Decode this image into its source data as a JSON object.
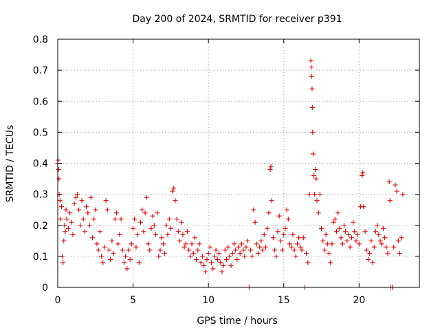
{
  "chart_data": {
    "type": "scatter",
    "title": "Day 200 of 2024, SRMTID for receiver p391",
    "xlabel": "GPS time / hours",
    "ylabel": "SRMTID / TECUs",
    "xlim": [
      0,
      24
    ],
    "ylim": [
      0,
      0.8
    ],
    "xticks": [
      0,
      5,
      10,
      15,
      20
    ],
    "xtick_labels": [
      "0",
      "5",
      "10",
      "15",
      "20"
    ],
    "yticks": [
      0,
      0.1,
      0.2,
      0.3,
      0.4,
      0.5,
      0.6,
      0.7,
      0.8
    ],
    "ytick_labels": [
      "0",
      "0.1",
      "0.2",
      "0.3",
      "0.4",
      "0.5",
      "0.6",
      "0.7",
      "0.8"
    ],
    "grid": true,
    "marker": "+",
    "marker_color": "#e00000",
    "series": [
      {
        "name": "SRMTID",
        "points": [
          [
            0.0,
            0.4
          ],
          [
            0.02,
            0.41
          ],
          [
            0.05,
            0.38
          ],
          [
            0.08,
            0.35
          ],
          [
            0.1,
            0.3
          ],
          [
            0.15,
            0.28
          ],
          [
            0.2,
            0.22
          ],
          [
            0.25,
            0.26
          ],
          [
            0.3,
            0.1
          ],
          [
            0.35,
            0.08
          ],
          [
            0.4,
            0.15
          ],
          [
            0.45,
            0.2
          ],
          [
            0.5,
            0.18
          ],
          [
            0.55,
            0.25
          ],
          [
            0.6,
            0.22
          ],
          [
            0.7,
            0.19
          ],
          [
            0.8,
            0.24
          ],
          [
            0.9,
            0.21
          ],
          [
            1.0,
            0.17
          ],
          [
            1.1,
            0.27
          ],
          [
            1.2,
            0.29
          ],
          [
            1.3,
            0.3
          ],
          [
            1.4,
            0.25
          ],
          [
            1.5,
            0.2
          ],
          [
            1.6,
            0.28
          ],
          [
            1.7,
            0.22
          ],
          [
            1.8,
            0.18
          ],
          [
            1.9,
            0.26
          ],
          [
            2.0,
            0.24
          ],
          [
            2.1,
            0.2
          ],
          [
            2.2,
            0.29
          ],
          [
            2.3,
            0.16
          ],
          [
            2.4,
            0.22
          ],
          [
            2.5,
            0.25
          ],
          [
            2.6,
            0.14
          ],
          [
            2.7,
            0.12
          ],
          [
            2.8,
            0.18
          ],
          [
            2.9,
            0.1
          ],
          [
            3.0,
            0.08
          ],
          [
            3.1,
            0.13
          ],
          [
            3.2,
            0.28
          ],
          [
            3.3,
            0.25
          ],
          [
            3.4,
            0.12
          ],
          [
            3.5,
            0.09
          ],
          [
            3.6,
            0.15
          ],
          [
            3.7,
            0.11
          ],
          [
            3.8,
            0.22
          ],
          [
            3.9,
            0.24
          ],
          [
            4.0,
            0.14
          ],
          [
            4.1,
            0.17
          ],
          [
            4.2,
            0.22
          ],
          [
            4.3,
            0.12
          ],
          [
            4.4,
            0.08
          ],
          [
            4.5,
            0.1
          ],
          [
            4.6,
            0.06
          ],
          [
            4.7,
            0.12
          ],
          [
            4.8,
            0.09
          ],
          [
            4.9,
            0.14
          ],
          [
            5.0,
            0.19
          ],
          [
            5.1,
            0.22
          ],
          [
            5.2,
            0.13
          ],
          [
            5.3,
            0.17
          ],
          [
            5.4,
            0.08
          ],
          [
            5.5,
            0.21
          ],
          [
            5.6,
            0.25
          ],
          [
            5.7,
            0.18
          ],
          [
            5.8,
            0.24
          ],
          [
            5.9,
            0.29
          ],
          [
            6.0,
            0.14
          ],
          [
            6.1,
            0.12
          ],
          [
            6.2,
            0.19
          ],
          [
            6.3,
            0.23
          ],
          [
            6.4,
            0.2
          ],
          [
            6.5,
            0.17
          ],
          [
            6.6,
            0.24
          ],
          [
            6.7,
            0.1
          ],
          [
            6.8,
            0.12
          ],
          [
            6.9,
            0.16
          ],
          [
            7.0,
            0.14
          ],
          [
            7.1,
            0.11
          ],
          [
            7.2,
            0.2
          ],
          [
            7.3,
            0.17
          ],
          [
            7.4,
            0.22
          ],
          [
            7.5,
            0.19
          ],
          [
            7.6,
            0.31
          ],
          [
            7.7,
            0.32
          ],
          [
            7.8,
            0.28
          ],
          [
            7.9,
            0.22
          ],
          [
            8.0,
            0.18
          ],
          [
            8.1,
            0.15
          ],
          [
            8.2,
            0.21
          ],
          [
            8.3,
            0.17
          ],
          [
            8.4,
            0.13
          ],
          [
            8.5,
            0.14
          ],
          [
            8.6,
            0.18
          ],
          [
            8.7,
            0.12
          ],
          [
            8.8,
            0.1
          ],
          [
            8.9,
            0.14
          ],
          [
            9.0,
            0.11
          ],
          [
            9.1,
            0.16
          ],
          [
            9.2,
            0.09
          ],
          [
            9.3,
            0.12
          ],
          [
            9.4,
            0.14
          ],
          [
            9.5,
            0.08
          ],
          [
            9.6,
            0.1
          ],
          [
            9.7,
            0.07
          ],
          [
            9.8,
            0.05
          ],
          [
            9.9,
            0.09
          ],
          [
            10.0,
            0.11
          ],
          [
            10.1,
            0.13
          ],
          [
            10.2,
            0.08
          ],
          [
            10.3,
            0.06
          ],
          [
            10.4,
            0.1
          ],
          [
            10.5,
            0.12
          ],
          [
            10.6,
            0.09
          ],
          [
            10.7,
            0.11
          ],
          [
            10.8,
            0.08
          ],
          [
            10.9,
            0.05
          ],
          [
            11.0,
            0.07
          ],
          [
            11.1,
            0.12
          ],
          [
            11.2,
            0.09
          ],
          [
            11.3,
            0.13
          ],
          [
            11.4,
            0.1
          ],
          [
            11.5,
            0.07
          ],
          [
            11.6,
            0.11
          ],
          [
            11.7,
            0.14
          ],
          [
            11.8,
            0.12
          ],
          [
            11.9,
            0.09
          ],
          [
            12.0,
            0.13
          ],
          [
            12.1,
            0.11
          ],
          [
            12.2,
            0.14
          ],
          [
            12.3,
            0.12
          ],
          [
            12.4,
            0.1
          ],
          [
            12.5,
            0.13
          ],
          [
            12.6,
            0.15
          ],
          [
            12.7,
            0.0
          ],
          [
            12.8,
            0.12
          ],
          [
            12.9,
            0.1
          ],
          [
            13.0,
            0.25
          ],
          [
            13.1,
            0.21
          ],
          [
            13.2,
            0.14
          ],
          [
            13.3,
            0.11
          ],
          [
            13.4,
            0.13
          ],
          [
            13.5,
            0.15
          ],
          [
            13.6,
            0.12
          ],
          [
            13.7,
            0.17
          ],
          [
            13.8,
            0.13
          ],
          [
            13.9,
            0.19
          ],
          [
            14.0,
            0.24
          ],
          [
            14.1,
            0.38
          ],
          [
            14.15,
            0.39
          ],
          [
            14.2,
            0.28
          ],
          [
            14.3,
            0.16
          ],
          [
            14.4,
            0.12
          ],
          [
            14.5,
            0.1
          ],
          [
            14.6,
            0.18
          ],
          [
            14.7,
            0.23
          ],
          [
            14.8,
            0.15
          ],
          [
            14.9,
            0.12
          ],
          [
            15.0,
            0.17
          ],
          [
            15.1,
            0.19
          ],
          [
            15.2,
            0.25
          ],
          [
            15.3,
            0.22
          ],
          [
            15.4,
            0.14
          ],
          [
            15.5,
            0.13
          ],
          [
            15.6,
            0.17
          ],
          [
            15.7,
            0.12
          ],
          [
            15.8,
            0.1
          ],
          [
            15.9,
            0.14
          ],
          [
            16.0,
            0.16
          ],
          [
            16.1,
            0.13
          ],
          [
            16.2,
            0.12
          ],
          [
            16.3,
            0.16
          ],
          [
            16.4,
            0.0
          ],
          [
            16.5,
            0.11
          ],
          [
            16.6,
            0.08
          ],
          [
            16.7,
            0.3
          ],
          [
            16.8,
            0.73
          ],
          [
            16.82,
            0.71
          ],
          [
            16.85,
            0.68
          ],
          [
            16.88,
            0.64
          ],
          [
            16.9,
            0.58
          ],
          [
            16.92,
            0.5
          ],
          [
            16.95,
            0.43
          ],
          [
            17.0,
            0.36
          ],
          [
            17.05,
            0.3
          ],
          [
            17.1,
            0.38
          ],
          [
            17.15,
            0.35
          ],
          [
            17.2,
            0.28
          ],
          [
            17.3,
            0.24
          ],
          [
            17.4,
            0.3
          ],
          [
            17.5,
            0.19
          ],
          [
            17.6,
            0.15
          ],
          [
            17.7,
            0.12
          ],
          [
            17.8,
            0.17
          ],
          [
            17.9,
            0.14
          ],
          [
            18.0,
            0.11
          ],
          [
            18.1,
            0.08
          ],
          [
            18.2,
            0.14
          ],
          [
            18.3,
            0.21
          ],
          [
            18.4,
            0.22
          ],
          [
            18.5,
            0.18
          ],
          [
            18.6,
            0.24
          ],
          [
            18.7,
            0.19
          ],
          [
            18.8,
            0.16
          ],
          [
            18.9,
            0.14
          ],
          [
            19.0,
            0.2
          ],
          [
            19.1,
            0.18
          ],
          [
            19.2,
            0.15
          ],
          [
            19.3,
            0.17
          ],
          [
            19.4,
            0.13
          ],
          [
            19.5,
            0.16
          ],
          [
            19.6,
            0.21
          ],
          [
            19.7,
            0.18
          ],
          [
            19.8,
            0.15
          ],
          [
            19.9,
            0.17
          ],
          [
            20.0,
            0.14
          ],
          [
            20.1,
            0.26
          ],
          [
            20.2,
            0.36
          ],
          [
            20.25,
            0.37
          ],
          [
            20.3,
            0.26
          ],
          [
            20.4,
            0.18
          ],
          [
            20.5,
            0.12
          ],
          [
            20.6,
            0.09
          ],
          [
            20.7,
            0.11
          ],
          [
            20.8,
            0.15
          ],
          [
            20.9,
            0.08
          ],
          [
            21.0,
            0.13
          ],
          [
            21.1,
            0.18
          ],
          [
            21.2,
            0.2
          ],
          [
            21.3,
            0.17
          ],
          [
            21.4,
            0.15
          ],
          [
            21.5,
            0.14
          ],
          [
            21.6,
            0.19
          ],
          [
            21.7,
            0.16
          ],
          [
            21.8,
            0.13
          ],
          [
            21.9,
            0.11
          ],
          [
            22.0,
            0.34
          ],
          [
            22.05,
            0.28
          ],
          [
            22.1,
            0.0
          ],
          [
            22.2,
            0.0
          ],
          [
            22.3,
            0.13
          ],
          [
            22.4,
            0.33
          ],
          [
            22.5,
            0.31
          ],
          [
            22.6,
            0.15
          ],
          [
            22.7,
            0.11
          ],
          [
            22.8,
            0.16
          ],
          [
            22.9,
            0.3
          ]
        ]
      }
    ]
  }
}
